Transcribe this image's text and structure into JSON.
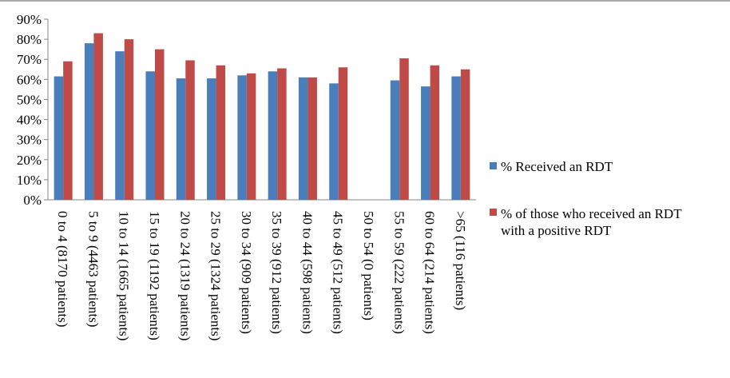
{
  "chart_data": {
    "type": "bar",
    "title": "",
    "xlabel": "",
    "ylabel": "",
    "ylim": [
      0,
      90
    ],
    "y_ticks": [
      "0%",
      "10%",
      "20%",
      "30%",
      "40%",
      "50%",
      "60%",
      "70%",
      "80%",
      "90%"
    ],
    "grid": false,
    "legend_position": "right",
    "categories": [
      "0 to 4 (8170 patients)",
      "5 to 9 (4463 patients)",
      "10 to 14 (1665 patients)",
      "15 to 19 (1192 patients)",
      "20 to 24 (1319 patients)",
      "25 to 29 (1324 patients)",
      "30 to 34 (909 patients)",
      "35 to 39 (912 patients)",
      "40 to 44 (598 patients)",
      "45 to 49 (512 patients)",
      "50 to 54 (0 patients)",
      "55 to 59 (222 patients)",
      "60 to 64 (214 patients)",
      ">65 (116 patients)"
    ],
    "series": [
      {
        "name": "% Received an RDT",
        "color": "#4a7ebb",
        "values": [
          61.5,
          78,
          74,
          64,
          60.5,
          60.5,
          62,
          64,
          61,
          58,
          0,
          59.5,
          56.5,
          61.5
        ]
      },
      {
        "name": "% of those who received an RDT with a positive RDT",
        "color": "#be4b48",
        "values": [
          69,
          83,
          80,
          75,
          69.5,
          67,
          63,
          65.5,
          61,
          66,
          0,
          70.5,
          67,
          65
        ]
      }
    ]
  }
}
